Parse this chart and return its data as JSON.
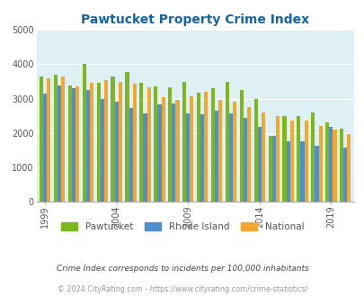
{
  "title": "Pawtucket Property Crime Index",
  "years": [
    1999,
    2000,
    2001,
    2002,
    2003,
    2004,
    2005,
    2006,
    2007,
    2008,
    2009,
    2010,
    2011,
    2012,
    2013,
    2014,
    2015,
    2016,
    2017,
    2018,
    2019,
    2020
  ],
  "pawtucket": [
    3650,
    3700,
    3380,
    4000,
    3450,
    3650,
    3780,
    3450,
    3350,
    3320,
    3480,
    3180,
    3290,
    3480,
    3250,
    2990,
    1920,
    2490,
    2500,
    2590,
    2300,
    2120
  ],
  "rhode_island": [
    3150,
    3370,
    3300,
    3250,
    3000,
    2900,
    2720,
    2580,
    2840,
    2860,
    2560,
    2540,
    2640,
    2580,
    2450,
    2190,
    1930,
    1760,
    1750,
    1630,
    2190,
    1570
  ],
  "national": [
    3600,
    3650,
    3360,
    3460,
    3530,
    3490,
    3430,
    3340,
    3050,
    2970,
    3060,
    3190,
    2960,
    2900,
    2750,
    2600,
    2500,
    2360,
    2360,
    2200,
    2100,
    1980
  ],
  "pawtucket_color": "#7db720",
  "rhode_island_color": "#4d90cd",
  "national_color": "#f0a830",
  "bg_color": "#dff0f5",
  "ylim": [
    0,
    5000
  ],
  "yticks": [
    0,
    1000,
    2000,
    3000,
    4000,
    5000
  ],
  "xtick_years": [
    1999,
    2004,
    2009,
    2014,
    2019
  ],
  "title_color": "#1464a0",
  "title_fontsize": 10,
  "subtitle": "Crime Index corresponds to incidents per 100,000 inhabitants",
  "footer": "© 2024 CityRating.com - https://www.cityrating.com/crime-statistics/",
  "legend_labels": [
    "Pawtucket",
    "Rhode Island",
    "National"
  ],
  "grid_color": "#ffffff",
  "axis_color": "#aaaaaa"
}
